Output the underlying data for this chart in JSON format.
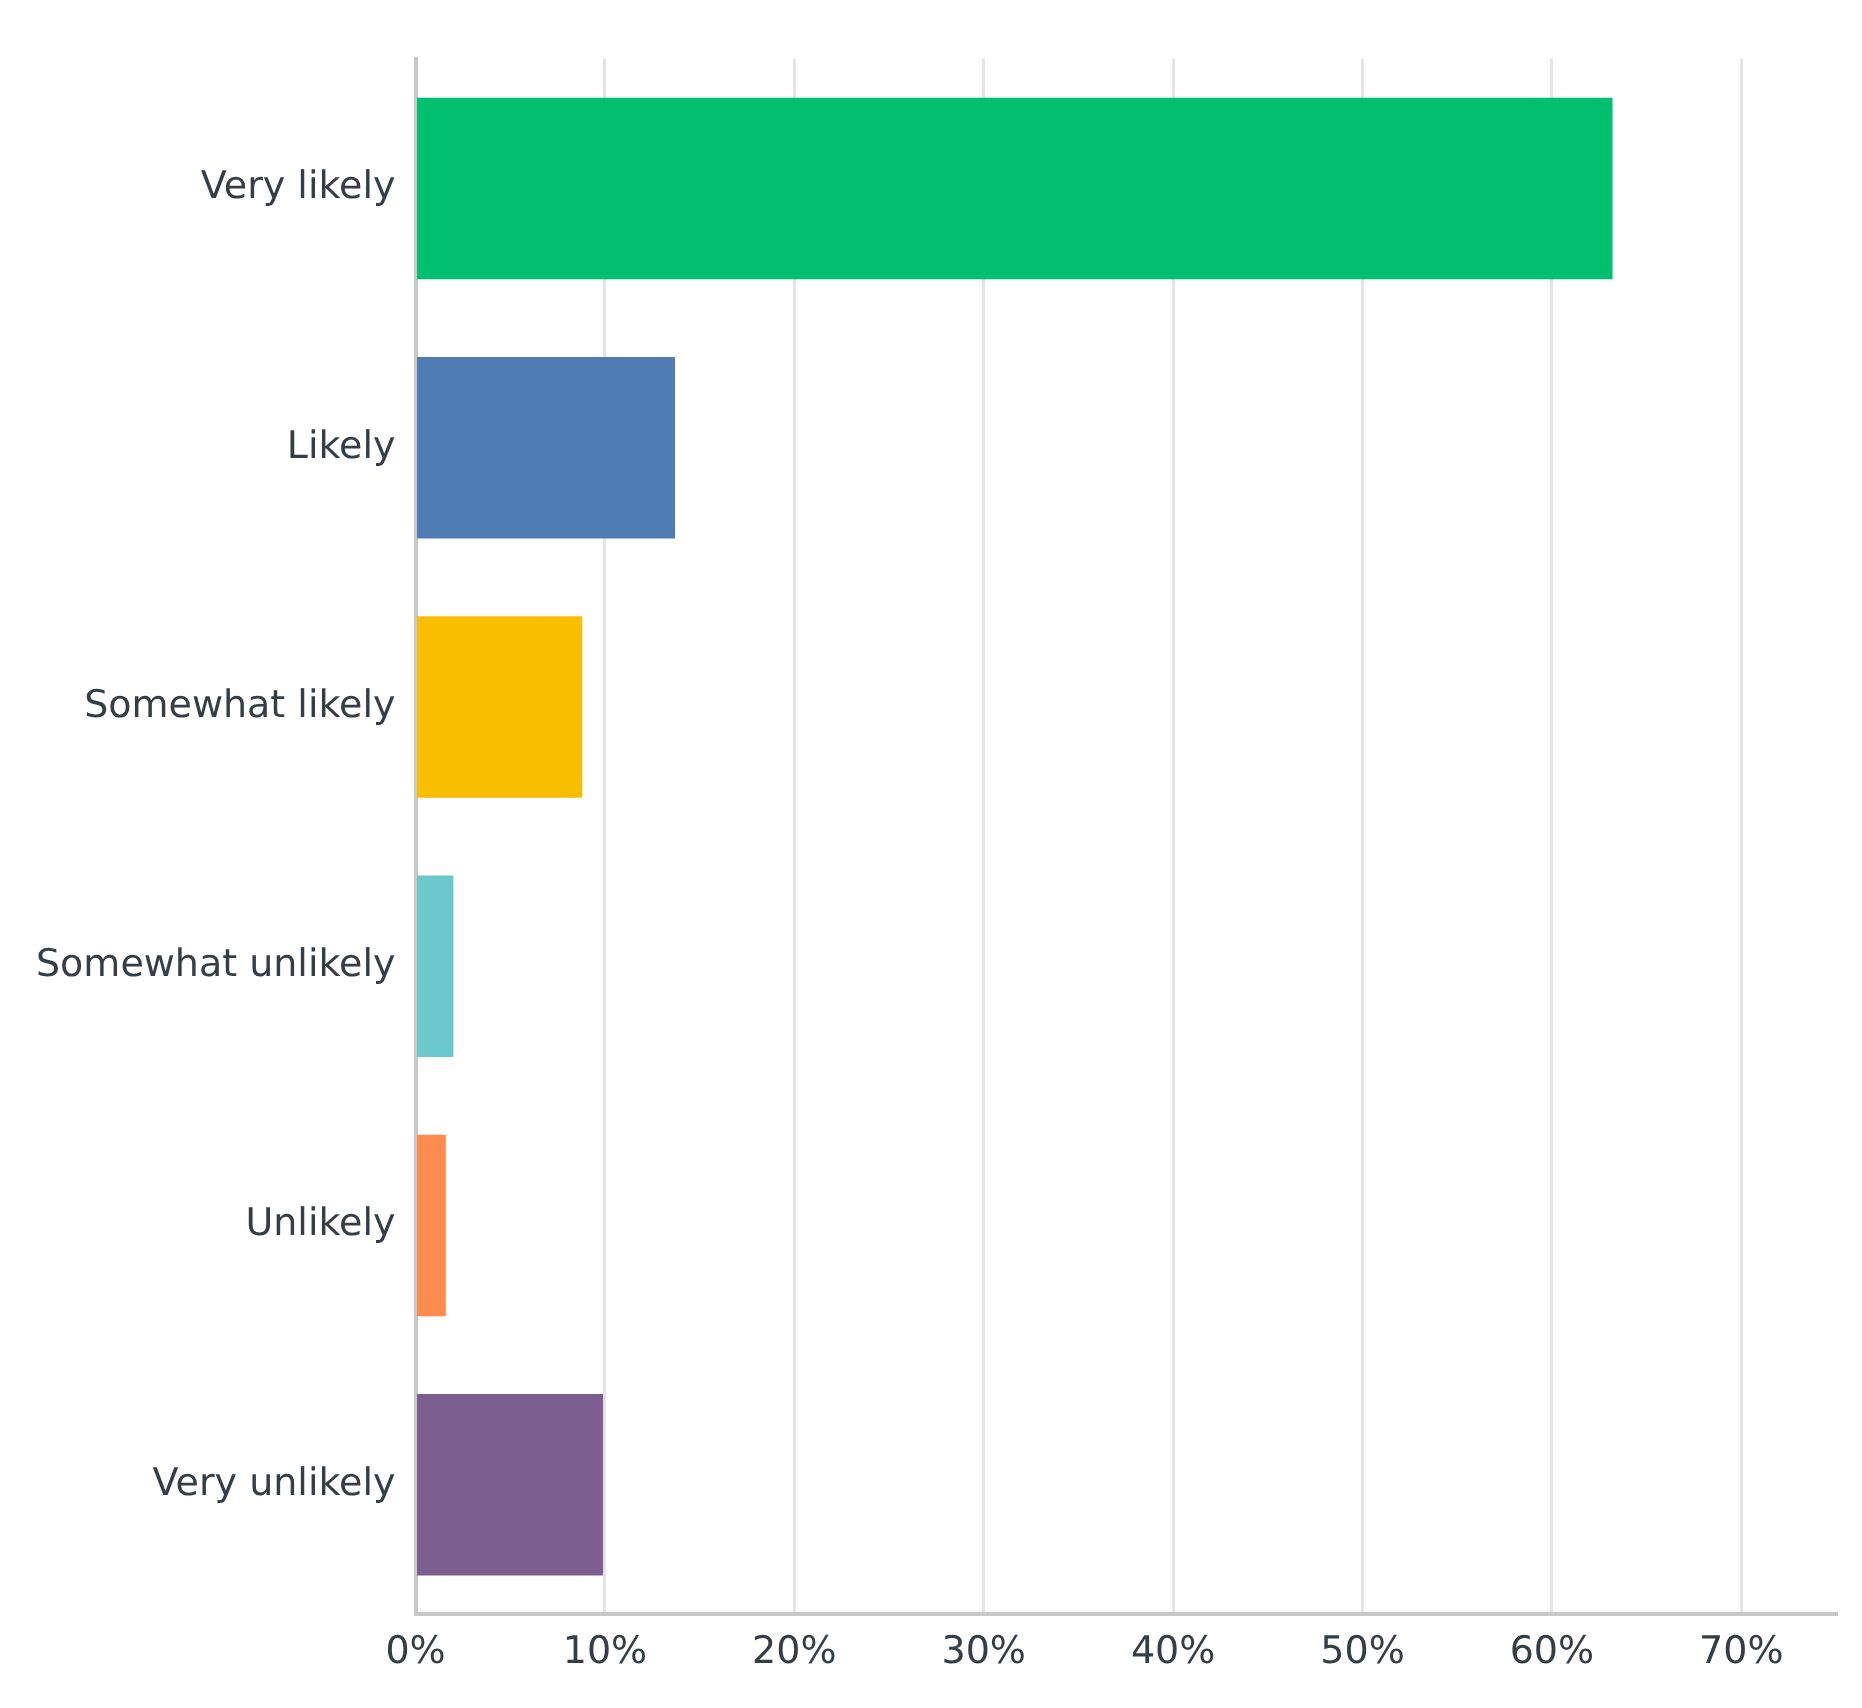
{
  "chart_data": {
    "type": "bar",
    "orientation": "horizontal",
    "categories": [
      "Very likely",
      "Likely",
      "Somewhat likely",
      "Somewhat unlikely",
      "Unlikely",
      "Very unlikely"
    ],
    "values": [
      63.2,
      13.7,
      8.8,
      2.0,
      1.6,
      9.9
    ],
    "colors": [
      "#00bf6f",
      "#507cb6",
      "#f9be00",
      "#6bc8cd",
      "#ff8b4f",
      "#7d5e90"
    ],
    "xlim": [
      0,
      75
    ],
    "xticks": [
      {
        "value": 0,
        "label": "0%"
      },
      {
        "value": 10,
        "label": "10%"
      },
      {
        "value": 20,
        "label": "20%"
      },
      {
        "value": 30,
        "label": "30%"
      },
      {
        "value": 40,
        "label": "40%"
      },
      {
        "value": 50,
        "label": "50%"
      },
      {
        "value": 60,
        "label": "60%"
      },
      {
        "value": 70,
        "label": "70%"
      }
    ],
    "grid": "x",
    "legend": false
  }
}
